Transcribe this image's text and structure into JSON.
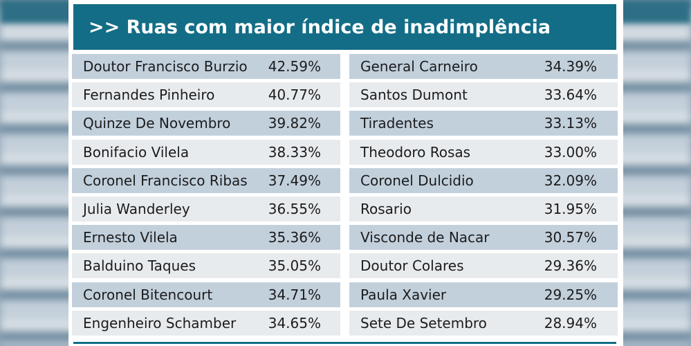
{
  "title": ">> Ruas com maior índice de inadimplência",
  "colors": {
    "header_bg": "#136d86",
    "row_shaded": "#c2d0dc",
    "row_plain": "#e8ebee"
  },
  "left_column": [
    {
      "street": "Doutor Francisco Burzio",
      "percent": "42.59%"
    },
    {
      "street": "Fernandes Pinheiro",
      "percent": "40.77%"
    },
    {
      "street": "Quinze De Novembro",
      "percent": "39.82%"
    },
    {
      "street": "Bonifacio Vilela",
      "percent": "38.33%"
    },
    {
      "street": "Coronel Francisco Ribas",
      "percent": "37.49%"
    },
    {
      "street": "Julia Wanderley",
      "percent": "36.55%"
    },
    {
      "street": "Ernesto Vilela",
      "percent": "35.36%"
    },
    {
      "street": "Balduino Taques",
      "percent": "35.05%"
    },
    {
      "street": "Coronel Bitencourt",
      "percent": "34.71%"
    },
    {
      "street": "Engenheiro Schamber",
      "percent": "34.65%"
    }
  ],
  "right_column": [
    {
      "street": "General Carneiro",
      "percent": "34.39%"
    },
    {
      "street": "Santos Dumont",
      "percent": "33.64%"
    },
    {
      "street": "Tiradentes",
      "percent": "33.13%"
    },
    {
      "street": "Theodoro Rosas",
      "percent": "33.00%"
    },
    {
      "street": "Coronel Dulcidio",
      "percent": "32.09%"
    },
    {
      "street": "Rosario",
      "percent": "31.95%"
    },
    {
      "street": "Visconde de Nacar",
      "percent": "30.57%"
    },
    {
      "street": "Doutor Colares",
      "percent": "29.36%"
    },
    {
      "street": "Paula Xavier",
      "percent": "29.25%"
    },
    {
      "street": "Sete De Setembro",
      "percent": "28.94%"
    }
  ]
}
